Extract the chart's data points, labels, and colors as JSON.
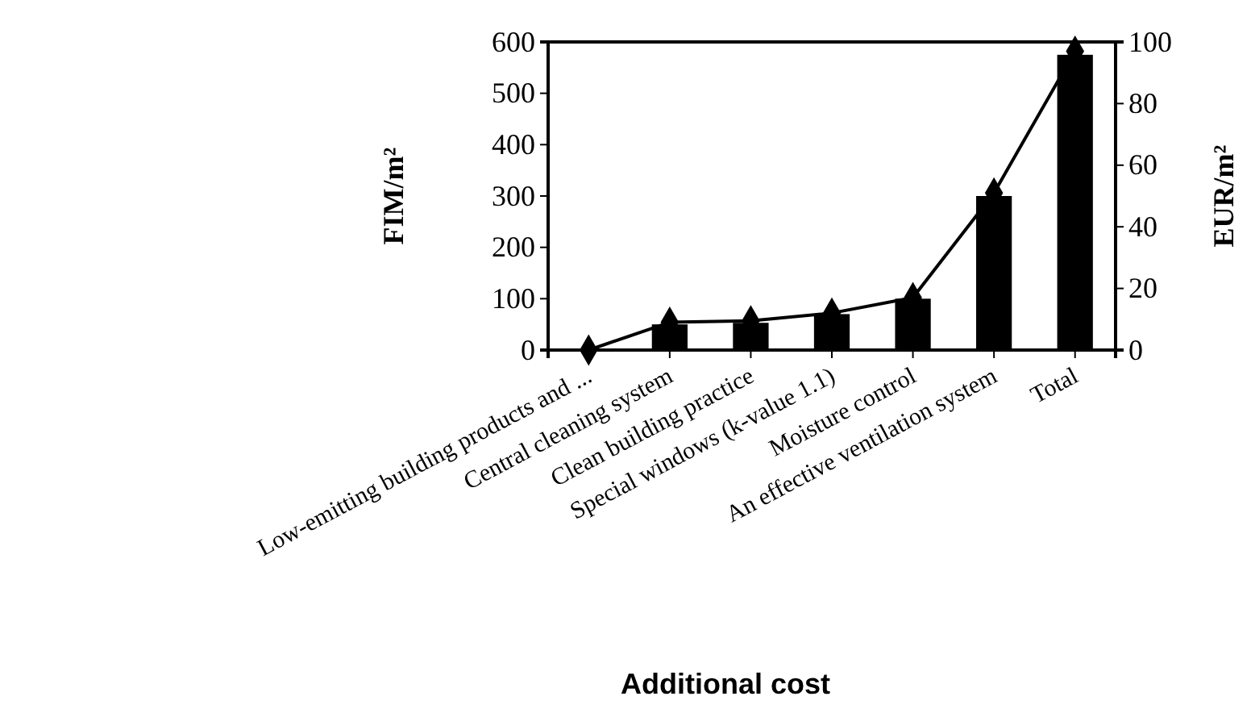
{
  "chart_data": {
    "type": "bar",
    "xlabel": "Additional cost",
    "ylabel": "FIM/m²",
    "y2label": "EUR/m²",
    "categories": [
      "Low-emitting building products and ...",
      "Central cleaning system",
      "Clean building practice",
      "Special windows (k-value 1.1)",
      "Moisture control",
      "An effective ventilation system",
      "Total"
    ],
    "series": [
      {
        "color": "#000000",
        "values": [
          0,
          50,
          53,
          70,
          100,
          300,
          575
        ]
      },
      {
        "type": "line",
        "axis": "y2",
        "color": "#000000",
        "marker": "diamond",
        "line_style": "solid",
        "values": [
          0,
          9,
          9.5,
          12,
          17,
          51,
          97
        ]
      }
    ],
    "ylim": [
      0,
      600
    ],
    "yticks": [
      0,
      100,
      200,
      300,
      400,
      500,
      600
    ],
    "y2lim": [
      0,
      100
    ],
    "y2ticks": [
      0,
      20,
      40,
      60,
      80,
      100
    ],
    "grid": false
  }
}
